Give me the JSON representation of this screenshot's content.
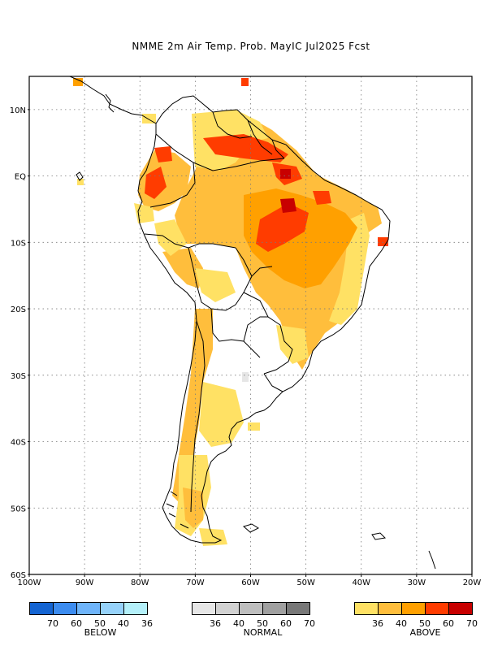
{
  "title": "NMME 2m Air Temp. Prob. MayIC  Jul2025 Fcst",
  "map": {
    "lat_labels": [
      "10N",
      "EQ",
      "10S",
      "20S",
      "30S",
      "40S",
      "50S",
      "60S"
    ],
    "lon_labels": [
      "100W",
      "90W",
      "80W",
      "70W",
      "60W",
      "50W",
      "40W",
      "30W",
      "20W"
    ],
    "grid": "dotted",
    "extent": {
      "lon_min": -100,
      "lon_max": -20,
      "lat_min": -60,
      "lat_max": 15
    }
  },
  "legend": {
    "below": {
      "caption": "BELOW",
      "ticks": [
        "70",
        "60",
        "50",
        "40",
        "36"
      ],
      "colors": [
        "#1464d2",
        "#3c8cf0",
        "#6eb4fa",
        "#96d2fa",
        "#b4f0fa"
      ]
    },
    "normal": {
      "caption": "NORMAL",
      "ticks": [
        "36",
        "40",
        "50",
        "60",
        "70"
      ],
      "colors": [
        "#e6e6e6",
        "#d2d2d2",
        "#bebebe",
        "#a0a0a0",
        "#787878"
      ]
    },
    "above": {
      "caption": "ABOVE",
      "ticks": [
        "36",
        "40",
        "50",
        "60",
        "70"
      ],
      "colors": [
        "#ffe164",
        "#ffbe3c",
        "#ffa000",
        "#ff3c00",
        "#c80000"
      ]
    }
  }
}
